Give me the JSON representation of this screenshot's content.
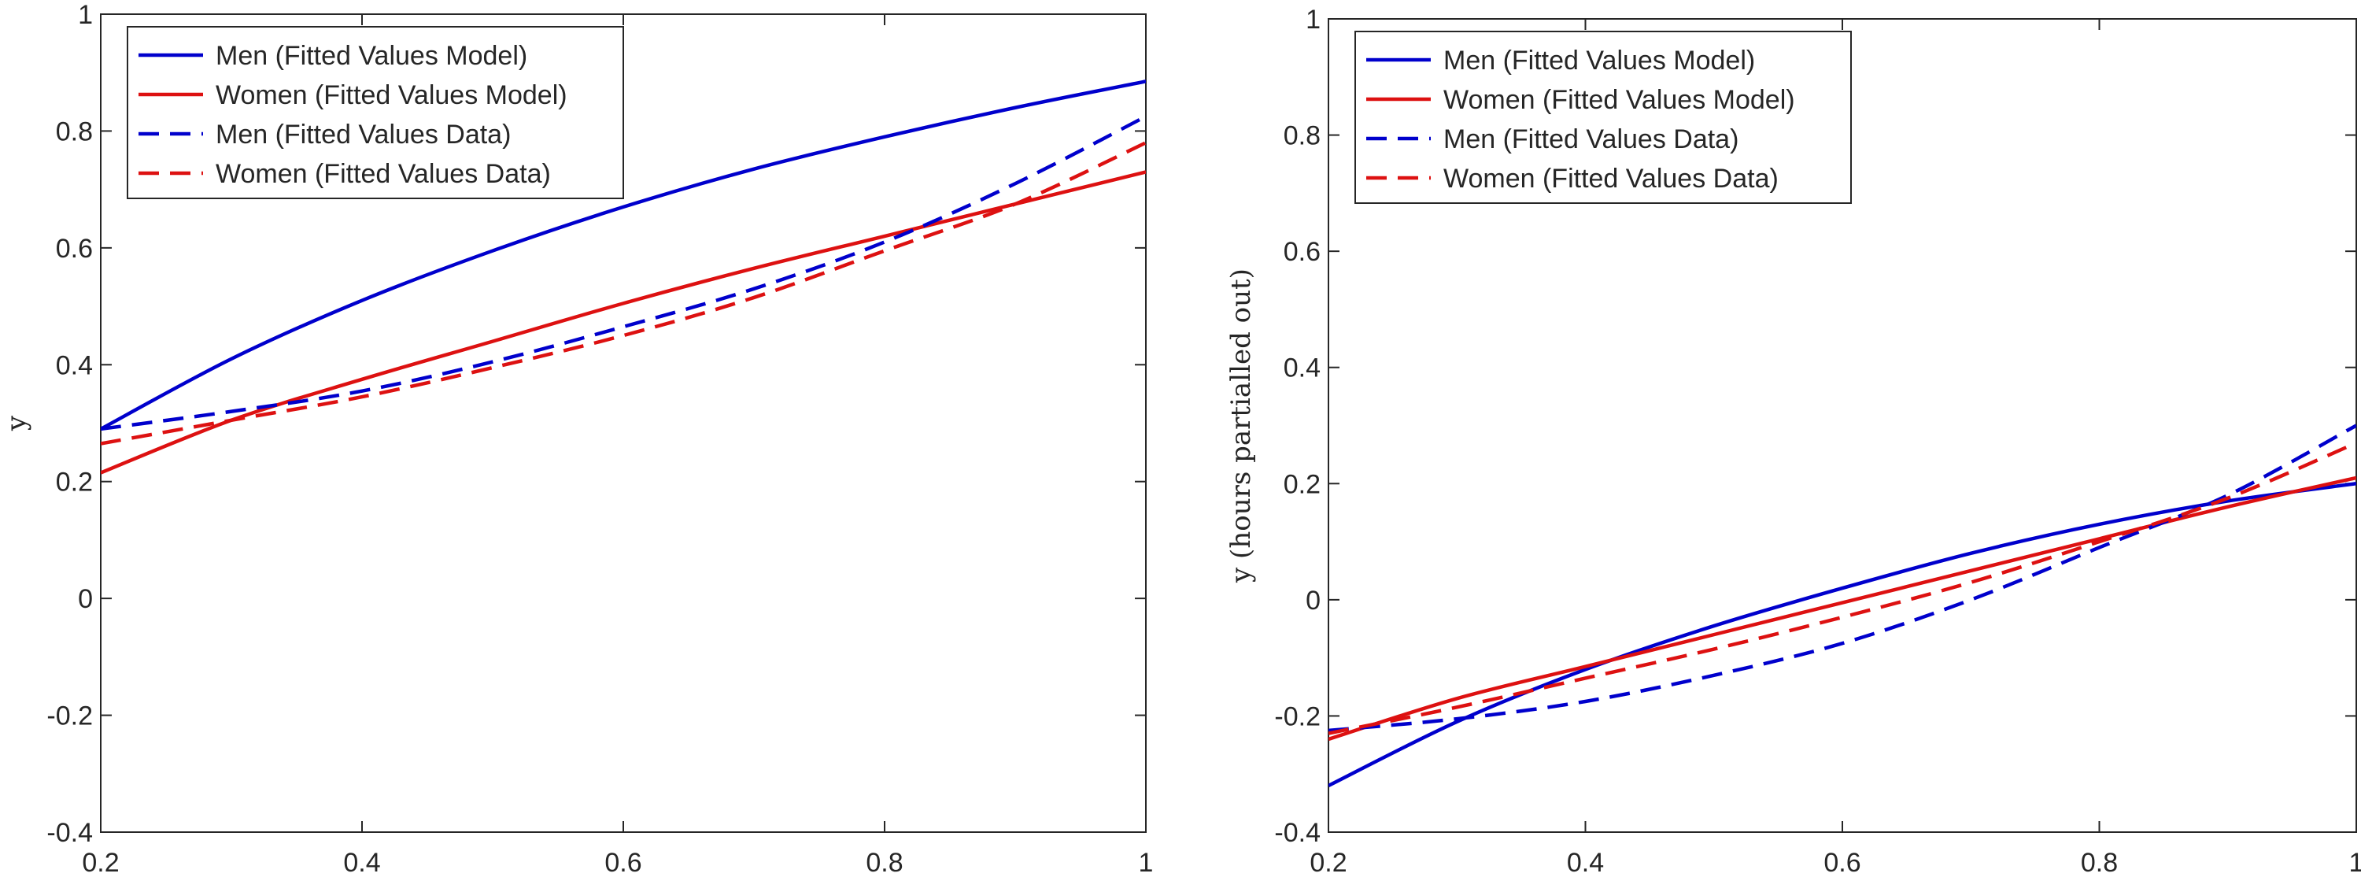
{
  "chart_data": [
    {
      "type": "line",
      "title": "",
      "xlabel": "",
      "ylabel": "y",
      "xlim": [
        0.2,
        1
      ],
      "ylim": [
        -0.4,
        1
      ],
      "xticks": [
        "0.2",
        "0.4",
        "0.6",
        "0.8",
        "1"
      ],
      "yticks": [
        "-0.4",
        "-0.2",
        "0",
        "0.2",
        "0.4",
        "0.6",
        "0.8",
        "1"
      ],
      "grid": false,
      "legend_position": "top-left",
      "x": [
        0.2,
        0.3,
        0.4,
        0.5,
        0.6,
        0.7,
        0.8,
        0.9,
        1.0
      ],
      "series": [
        {
          "name": "Men (Fitted Values Model)",
          "color": "#0000cc",
          "dash": "solid",
          "values": [
            0.29,
            0.41,
            0.51,
            0.595,
            0.67,
            0.735,
            0.79,
            0.84,
            0.885
          ]
        },
        {
          "name": "Women (Fitted Values Model)",
          "color": "#dd1111",
          "dash": "solid",
          "values": [
            0.215,
            0.305,
            0.375,
            0.44,
            0.505,
            0.565,
            0.62,
            0.675,
            0.73
          ]
        },
        {
          "name": "Men (Fitted Values Data)",
          "color": "#0000cc",
          "dash": "dashed",
          "values": [
            0.29,
            0.32,
            0.355,
            0.405,
            0.465,
            0.53,
            0.61,
            0.71,
            0.825
          ]
        },
        {
          "name": "Women (Fitted Values Data)",
          "color": "#dd1111",
          "dash": "dashed",
          "values": [
            0.265,
            0.305,
            0.345,
            0.395,
            0.45,
            0.515,
            0.595,
            0.675,
            0.78
          ]
        }
      ]
    },
    {
      "type": "line",
      "title": "",
      "xlabel": "",
      "ylabel": "y (hours partialled out)",
      "xlim": [
        0.2,
        1
      ],
      "ylim": [
        -0.4,
        1
      ],
      "xticks": [
        "0.2",
        "0.4",
        "0.6",
        "0.8",
        "1"
      ],
      "yticks": [
        "-0.4",
        "-0.2",
        "0",
        "0.2",
        "0.4",
        "0.6",
        "0.8",
        "1"
      ],
      "grid": false,
      "legend_position": "top-left",
      "x": [
        0.2,
        0.3,
        0.4,
        0.5,
        0.6,
        0.7,
        0.8,
        0.9,
        1.0
      ],
      "series": [
        {
          "name": "Men (Fitted Values Model)",
          "color": "#0000cc",
          "dash": "solid",
          "values": [
            -0.32,
            -0.21,
            -0.12,
            -0.045,
            0.02,
            0.08,
            0.13,
            0.17,
            0.2
          ]
        },
        {
          "name": "Women (Fitted Values Model)",
          "color": "#dd1111",
          "dash": "solid",
          "values": [
            -0.24,
            -0.17,
            -0.115,
            -0.06,
            -0.005,
            0.05,
            0.105,
            0.16,
            0.21
          ]
        },
        {
          "name": "Men (Fitted Values Data)",
          "color": "#0000cc",
          "dash": "dashed",
          "values": [
            -0.225,
            -0.205,
            -0.175,
            -0.13,
            -0.075,
            0.0,
            0.09,
            0.18,
            0.3
          ]
        },
        {
          "name": "Women (Fitted Values Data)",
          "color": "#dd1111",
          "dash": "dashed",
          "values": [
            -0.23,
            -0.185,
            -0.135,
            -0.085,
            -0.03,
            0.03,
            0.1,
            0.175,
            0.27
          ]
        }
      ]
    }
  ]
}
